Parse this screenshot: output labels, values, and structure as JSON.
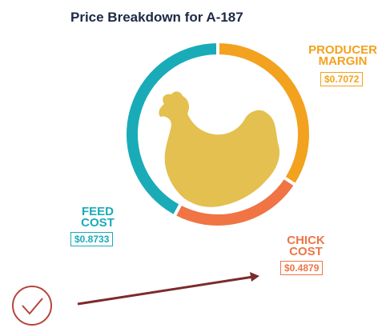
{
  "chart_data": {
    "type": "pie",
    "donut": true,
    "title": "Price Breakdown for A-187",
    "categories": [
      "PRODUCER MARGIN",
      "CHICK COST",
      "FEED COST"
    ],
    "values": [
      0.7072,
      0.4879,
      0.8733
    ],
    "value_labels": [
      "$0.7072",
      "$0.4879",
      "$0.8733"
    ],
    "colors": [
      "#f2a21e",
      "#f07444",
      "#1aabb8"
    ]
  }
}
